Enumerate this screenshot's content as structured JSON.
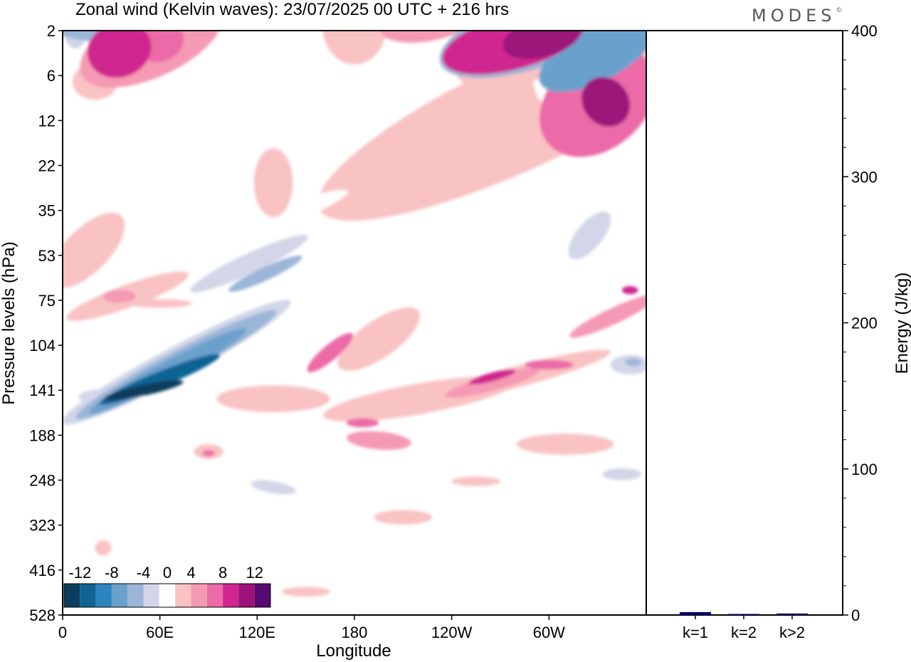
{
  "title": "Zonal wind (Kelvin waves):  23/07/2025  00 UTC  + 216 hrs",
  "brand": "MODES",
  "brand_mark": "©",
  "chart_data": [
    {
      "type": "heatmap",
      "title": "Zonal wind (Kelvin waves):  23/07/2025  00 UTC  + 216 hrs",
      "xlabel": "Longitude",
      "ylabel": "Pressure levels (hPa)",
      "x_ticks": [
        "0",
        "60E",
        "120E",
        "180",
        "120W",
        "60W"
      ],
      "x_tick_values": [
        0,
        60,
        120,
        180,
        240,
        300
      ],
      "xlim": [
        0,
        360
      ],
      "y_ticks": [
        "2",
        "6",
        "12",
        "22",
        "35",
        "53",
        "75",
        "104",
        "141",
        "188",
        "248",
        "323",
        "416",
        "528"
      ],
      "colorbar": {
        "labels": [
          "-12",
          "-8",
          "-4",
          "0",
          "4",
          "8",
          "12"
        ],
        "label_bounds": [
          -12,
          -8,
          -4,
          0,
          4,
          8,
          12
        ],
        "bounds": [
          -14,
          -12,
          -10,
          -8,
          -6,
          -4,
          -2,
          2,
          4,
          6,
          8,
          10,
          12,
          14
        ],
        "colors": [
          "#0a3d5c",
          "#0f6494",
          "#2b84bd",
          "#6aa1cc",
          "#9bb6d8",
          "#d2d6e8",
          "#ffffff",
          "#f9c2c3",
          "#f59ab4",
          "#ec6aa7",
          "#d0268f",
          "#9d127a",
          "#540a6f"
        ]
      },
      "blobs": [
        {
          "lon": 8,
          "lev": 1.5,
          "rx": 8,
          "ry": 0.6,
          "rot": 0,
          "val": -3
        },
        {
          "lon": 30,
          "lev": 1.3,
          "rx": 40,
          "ry": 0.5,
          "rot": 0,
          "val": -5
        },
        {
          "lon": 55,
          "lev": 1.3,
          "rx": 25,
          "ry": 0.5,
          "rot": 0,
          "val": -3
        },
        {
          "lon": 70,
          "lev": 3.2,
          "rx": 40,
          "ry": 2.0,
          "rot": 50,
          "val": -2
        },
        {
          "lon": 40,
          "lev": 6.5,
          "rx": 35,
          "ry": 1.4,
          "rot": 0,
          "val": -2
        },
        {
          "lon": 20,
          "lev": 6.8,
          "rx": 14,
          "ry": 0.7,
          "rot": 0,
          "val": 2
        },
        {
          "lon": 55,
          "lev": 3.0,
          "rx": 48,
          "ry": 0.9,
          "rot": -25,
          "val": 5
        },
        {
          "lon": 35,
          "lev": 3.7,
          "rx": 20,
          "ry": 0.7,
          "rot": -20,
          "val": 9
        },
        {
          "lon": 60,
          "lev": 3.0,
          "rx": 15,
          "ry": 0.5,
          "rot": -20,
          "val": 7
        },
        {
          "lon": 110,
          "lev": 1.8,
          "rx": 70,
          "ry": 0.9,
          "rot": -15,
          "val": -2
        },
        {
          "lon": 180,
          "lev": 1.5,
          "rx": 20,
          "ry": 1.0,
          "rot": 0,
          "val": 3
        },
        {
          "lon": 225,
          "lev": 1.2,
          "rx": 30,
          "ry": 0.5,
          "rot": -10,
          "val": 4
        },
        {
          "lon": 195,
          "lev": 12.0,
          "rx": 22,
          "ry": 2.2,
          "rot": 10,
          "val": -2
        },
        {
          "lon": 305,
          "lev": 3.2,
          "rx": 70,
          "ry": 1.2,
          "rot": -22,
          "val": -2
        },
        {
          "lon": 290,
          "lev": 2.2,
          "rx": 60,
          "ry": 0.9,
          "rot": -18,
          "val": -5
        },
        {
          "lon": 330,
          "lev": 4.0,
          "rx": 40,
          "ry": 0.7,
          "rot": -28,
          "val": -7
        },
        {
          "lon": 295,
          "lev": 3.3,
          "rx": 55,
          "ry": 0.8,
          "rot": -20,
          "val": 3
        },
        {
          "lon": 278,
          "lev": 3.0,
          "rx": 45,
          "ry": 0.7,
          "rot": -15,
          "val": 9
        },
        {
          "lon": 296,
          "lev": 2.6,
          "rx": 25,
          "ry": 0.5,
          "rot": -15,
          "val": 10
        },
        {
          "lon": 285,
          "lev": 11.0,
          "rx": 140,
          "ry": 1.8,
          "rot": -25,
          "val": 2
        },
        {
          "lon": 330,
          "lev": 9.5,
          "rx": 40,
          "ry": 1.8,
          "rot": -40,
          "val": 6
        },
        {
          "lon": 335,
          "lev": 9.5,
          "rx": 14,
          "ry": 1.0,
          "rot": -40,
          "val": 11
        },
        {
          "lon": 320,
          "lev": 6.0,
          "rx": 30,
          "ry": 1.0,
          "rot": -20,
          "val": -2
        },
        {
          "lon": 330,
          "lev": 6.8,
          "rx": 8,
          "ry": 0.5,
          "rot": 0,
          "val": 2
        },
        {
          "lon": 10,
          "lev": 33.0,
          "rx": 25,
          "ry": 2.0,
          "rot": 15,
          "val": -2
        },
        {
          "lon": 15,
          "lev": 51.0,
          "rx": 30,
          "ry": 2.2,
          "rot": -45,
          "val": 3
        },
        {
          "lon": 40,
          "lev": 73.0,
          "rx": 40,
          "ry": 1.4,
          "rot": -20,
          "val": 3
        },
        {
          "lon": 35,
          "lev": 73.0,
          "rx": 10,
          "ry": 0.8,
          "rot": 0,
          "val": 5
        },
        {
          "lon": 60,
          "lev": 77.0,
          "rx": 20,
          "ry": 0.7,
          "rot": 0,
          "val": 2
        },
        {
          "lon": 110,
          "lev": 43.0,
          "rx": 70,
          "ry": 1.2,
          "rot": -20,
          "val": -2
        },
        {
          "lon": 130,
          "lev": 27.0,
          "rx": 12,
          "ry": 2.5,
          "rot": 0,
          "val": 2
        },
        {
          "lon": 115,
          "lev": 57.0,
          "rx": 40,
          "ry": 1.2,
          "rot": -25,
          "val": -3
        },
        {
          "lon": 125,
          "lev": 62.0,
          "rx": 25,
          "ry": 0.8,
          "rot": -25,
          "val": -5
        },
        {
          "lon": 70,
          "lev": 118.0,
          "rx": 80,
          "ry": 3.2,
          "rot": -28,
          "val": -3
        },
        {
          "lon": 70,
          "lev": 120.0,
          "rx": 70,
          "ry": 2.6,
          "rot": -28,
          "val": -5
        },
        {
          "lon": 65,
          "lev": 125.0,
          "rx": 55,
          "ry": 2.0,
          "rot": -28,
          "val": -8
        },
        {
          "lon": 60,
          "lev": 132.0,
          "rx": 40,
          "ry": 1.6,
          "rot": -22,
          "val": -11
        },
        {
          "lon": 50,
          "lev": 141.0,
          "rx": 25,
          "ry": 1.1,
          "rot": -12,
          "val": -14
        },
        {
          "lon": 25,
          "lev": 148.0,
          "rx": 15,
          "ry": 2.0,
          "rot": 0,
          "val": -3
        },
        {
          "lon": 45,
          "lev": 170.0,
          "rx": 40,
          "ry": 2.2,
          "rot": -20,
          "val": -2
        },
        {
          "lon": 65,
          "lev": 260.0,
          "rx": 15,
          "ry": 4.0,
          "rot": 0,
          "val": -2
        },
        {
          "lon": 10,
          "lev": 200.0,
          "rx": 10,
          "ry": 3.5,
          "rot": 0,
          "val": -2
        },
        {
          "lon": 90,
          "lev": 210.0,
          "rx": 9,
          "ry": 2.5,
          "rot": 0,
          "val": 3
        },
        {
          "lon": 90,
          "lev": 212.0,
          "rx": 4,
          "ry": 1.0,
          "rot": 0,
          "val": 7
        },
        {
          "lon": 130,
          "lev": 230.0,
          "rx": 25,
          "ry": 4.0,
          "rot": 10,
          "val": -2
        },
        {
          "lon": 130,
          "lev": 260.0,
          "rx": 14,
          "ry": 2.5,
          "rot": 10,
          "val": -4
        },
        {
          "lon": 170,
          "lev": 400.0,
          "rx": 15,
          "ry": 4.0,
          "rot": 0,
          "val": -2
        },
        {
          "lon": 130,
          "lev": 150.0,
          "rx": 35,
          "ry": 3.5,
          "rot": 0,
          "val": 3
        },
        {
          "lon": 195,
          "lev": 100.0,
          "rx": 30,
          "ry": 3.0,
          "rot": -35,
          "val": 3
        },
        {
          "lon": 165,
          "lev": 110.0,
          "rx": 18,
          "ry": 1.6,
          "rot": -40,
          "val": 6
        },
        {
          "lon": 220,
          "lev": 150.0,
          "rx": 60,
          "ry": 4.0,
          "rot": -10,
          "val": 3
        },
        {
          "lon": 195,
          "lev": 195.0,
          "rx": 20,
          "ry": 3.0,
          "rot": 5,
          "val": 4
        },
        {
          "lon": 185,
          "lev": 175.0,
          "rx": 10,
          "ry": 1.2,
          "rot": 0,
          "val": 7
        },
        {
          "lon": 210,
          "lev": 310.0,
          "rx": 18,
          "ry": 3.0,
          "rot": 0,
          "val": 3
        },
        {
          "lon": 280,
          "lev": 130.0,
          "rx": 60,
          "ry": 2.2,
          "rot": -15,
          "val": 3
        },
        {
          "lon": 265,
          "lev": 135.0,
          "rx": 30,
          "ry": 1.6,
          "rot": -15,
          "val": 5
        },
        {
          "lon": 265,
          "lev": 130.0,
          "rx": 15,
          "ry": 0.9,
          "rot": -15,
          "val": 8
        },
        {
          "lon": 300,
          "lev": 120.0,
          "rx": 15,
          "ry": 1.0,
          "rot": 0,
          "val": 7
        },
        {
          "lon": 340,
          "lev": 85.0,
          "rx": 30,
          "ry": 1.3,
          "rot": -25,
          "val": 4
        },
        {
          "lon": 350,
          "lev": 70.0,
          "rx": 5,
          "ry": 0.5,
          "rot": 0,
          "val": 9
        },
        {
          "lon": 255,
          "lev": 250.0,
          "rx": 15,
          "ry": 2.0,
          "rot": 0,
          "val": 2
        },
        {
          "lon": 310,
          "lev": 200.0,
          "rx": 30,
          "ry": 3.5,
          "rot": 0,
          "val": 2
        },
        {
          "lon": 300,
          "lev": 60.0,
          "rx": 40,
          "ry": 1.8,
          "rot": -45,
          "val": -2
        },
        {
          "lon": 325,
          "lev": 45.0,
          "rx": 18,
          "ry": 1.3,
          "rot": -50,
          "val": -4
        },
        {
          "lon": 350,
          "lev": 120.0,
          "rx": 12,
          "ry": 2.0,
          "rot": 0,
          "val": -3
        },
        {
          "lon": 352,
          "lev": 118.0,
          "rx": 5,
          "ry": 0.8,
          "rot": 0,
          "val": -6
        },
        {
          "lon": 340,
          "lev": 230.0,
          "rx": 22,
          "ry": 3.5,
          "rot": 0,
          "val": -2
        },
        {
          "lon": 345,
          "lev": 240.0,
          "rx": 12,
          "ry": 2.0,
          "rot": 0,
          "val": -4
        },
        {
          "lon": 230,
          "lev": 400.0,
          "rx": 5,
          "ry": 2.5,
          "rot": 0,
          "val": -2
        },
        {
          "lon": 300,
          "lev": 460.0,
          "rx": 3,
          "ry": 2.0,
          "rot": 0,
          "val": -2
        },
        {
          "lon": 25,
          "lev": 370.0,
          "rx": 5,
          "ry": 4.0,
          "rot": 0,
          "val": 2
        },
        {
          "lon": 150,
          "lev": 470.0,
          "rx": 15,
          "ry": 3.0,
          "rot": 0,
          "val": 2
        }
      ]
    },
    {
      "type": "bar",
      "ylabel": "Energy (J/kg)",
      "categories": [
        "k=1",
        "k=2",
        "k>2"
      ],
      "values": [
        2,
        0.5,
        1
      ],
      "ylim": [
        0,
        400
      ],
      "y_ticks": [
        0,
        100,
        200,
        300,
        400
      ],
      "bar_color": "#00006e"
    }
  ]
}
